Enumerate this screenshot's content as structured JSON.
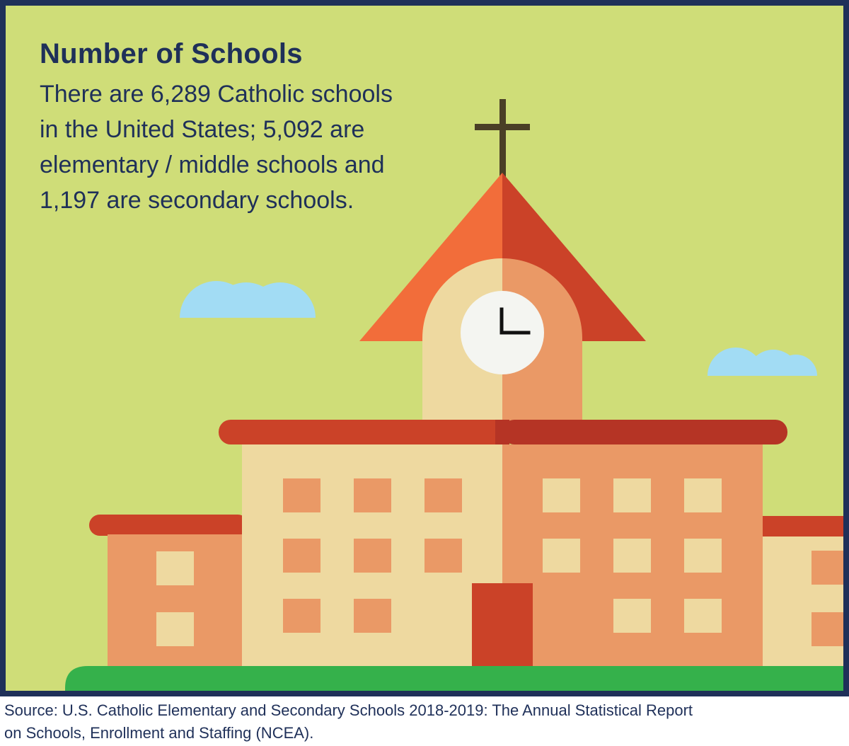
{
  "infographic": {
    "title": "Number of Schools",
    "body_lines": [
      "There are 6,289 Catholic schools",
      "in the United States; 5,092 are",
      "elementary / middle schools and",
      "1,197 are secondary schools."
    ]
  },
  "source": {
    "lines": [
      "Source: U.S. Catholic Elementary and Secondary Schools 2018-2019: The Annual Statistical Report",
      "on Schools, Enrollment and Staffing (NCEA)."
    ]
  },
  "colors": {
    "border": "#1f3059",
    "background": "#cfdd78",
    "text": "#1f3059",
    "roof_light": "#f26d3a",
    "roof_dark": "#cb4228",
    "wall_light": "#eed9a0",
    "wall_dark": "#ea9966",
    "cloud": "#a2dcf4",
    "grass": "#35b14b",
    "cross": "#4a3f26"
  },
  "icons": [
    "school-building-illustration",
    "clock-icon",
    "cross-icon",
    "cloud-icon"
  ]
}
